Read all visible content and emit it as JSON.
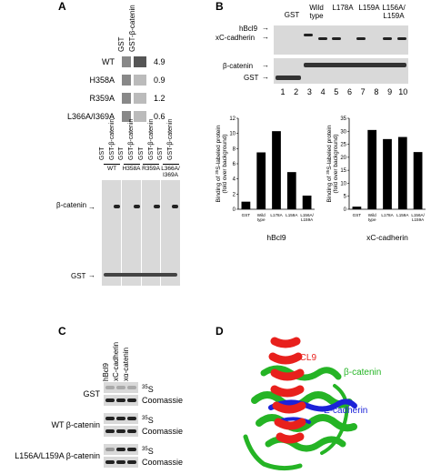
{
  "panelA": {
    "label": "A",
    "col_headers": [
      "GST",
      "GST-β-catenin"
    ],
    "rows": [
      {
        "name": "WT",
        "value": "4.9"
      },
      {
        "name": "H358A",
        "value": "0.9"
      },
      {
        "name": "R359A",
        "value": "1.2"
      },
      {
        "name": "L366A/I369A",
        "value": "0.6"
      }
    ],
    "lane_headers": [
      "GST",
      "GST-β-catenin",
      "GST",
      "GST-β-catenin",
      "GST",
      "GST-β-catenin",
      "GST",
      "GST-β-catenin"
    ],
    "group_labels": [
      "WT",
      "H358A",
      "R359A",
      "L366A/\nI369A"
    ],
    "marker_top": "β-catenin",
    "marker_bottom": "GST"
  },
  "panelB": {
    "label": "B",
    "gel_headers": [
      "GST",
      "Wild type",
      "L178A",
      "L159A",
      "L156A/ L159A"
    ],
    "gel_labels_top": [
      "hBcl9",
      "xC-cadherin"
    ],
    "gel_labels_bottom": [
      "β-catenin",
      "GST"
    ],
    "lane_numbers": [
      "1",
      "2",
      "3",
      "4",
      "5",
      "6",
      "7",
      "8",
      "9",
      "10"
    ],
    "ylabel": "Binding of 35S-labeled protein (fold over background)",
    "ylabel_parts": {
      "pre": "Binding of ",
      "sup": "35",
      "post": "S-labeled protein",
      "line2": "(fold over background)"
    }
  },
  "chart_data": [
    {
      "type": "bar",
      "title": "hBcl9",
      "categories": [
        "GST",
        "Wild type",
        "L178A",
        "L159A",
        "L156A/ L159A"
      ],
      "values": [
        1.0,
        7.5,
        10.3,
        4.9,
        1.8
      ],
      "ylim": [
        0,
        12
      ],
      "yticks": [
        0,
        2,
        4,
        6,
        8,
        10,
        12
      ],
      "ylabel": "Binding of 35S-labeled protein (fold over background)"
    },
    {
      "type": "bar",
      "title": "xC-cadherin",
      "categories": [
        "GST",
        "Wild type",
        "L178A",
        "L159A",
        "L156A/ L159A"
      ],
      "values": [
        1.0,
        30.5,
        27.0,
        27.8,
        22.0
      ],
      "ylim": [
        0,
        35
      ],
      "yticks": [
        0,
        5,
        10,
        15,
        20,
        25,
        30,
        35
      ],
      "ylabel": "Binding of 35S-labeled protein (fold over background)"
    }
  ],
  "panelC": {
    "label": "C",
    "col_headers": [
      "hBcl9",
      "xC-cadherin",
      "xα-catenin"
    ],
    "rows": [
      {
        "name": "GST",
        "bands": [
          "35S",
          "Coomassie"
        ]
      },
      {
        "name": "WT β-catenin",
        "bands": [
          "35S",
          "Coomassie"
        ]
      },
      {
        "name": "L156A/L159A β-catenin",
        "bands": [
          "35S",
          "Coomassie"
        ]
      }
    ]
  },
  "panelD": {
    "label": "D",
    "labels": [
      "BCL9",
      "β-catenin",
      "E-cadherin"
    ],
    "colors": {
      "bcl9": "#e8201c",
      "beta_catenin": "#25b425",
      "e_cadherin": "#1c22d8"
    }
  }
}
